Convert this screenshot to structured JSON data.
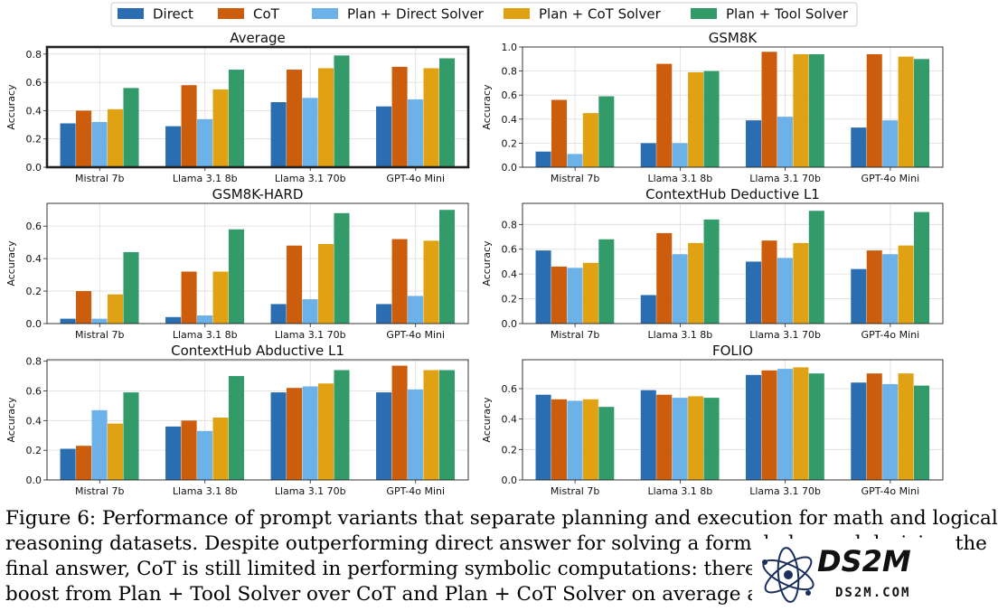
{
  "legend": [
    {
      "name": "Direct",
      "color": "#2a6db0"
    },
    {
      "name": "CoT",
      "color": "#cc5d0c"
    },
    {
      "name": "Plan + Direct Solver",
      "color": "#6cb1e8"
    },
    {
      "name": "Plan + CoT Solver",
      "color": "#e0a213"
    },
    {
      "name": "Plan + Tool Solver",
      "color": "#339b6a"
    }
  ],
  "chart_data": [
    {
      "type": "bar",
      "title": "Average",
      "ylabel": "Accuracy",
      "ylim": [
        0,
        0.85
      ],
      "yticks": [
        "0.0",
        "0.2",
        "0.4",
        "0.6",
        "0.8"
      ],
      "highlighted": true,
      "categories": [
        "Mistral 7b",
        "Llama 3.1 8b",
        "Llama 3.1 70b",
        "GPT-4o Mini"
      ],
      "series": [
        {
          "name": "Direct",
          "values": [
            0.31,
            0.29,
            0.46,
            0.43
          ]
        },
        {
          "name": "CoT",
          "values": [
            0.4,
            0.58,
            0.69,
            0.71
          ]
        },
        {
          "name": "Plan + Direct Solver",
          "values": [
            0.32,
            0.34,
            0.49,
            0.48
          ]
        },
        {
          "name": "Plan + CoT Solver",
          "values": [
            0.41,
            0.55,
            0.7,
            0.7
          ]
        },
        {
          "name": "Plan + Tool Solver",
          "values": [
            0.56,
            0.69,
            0.79,
            0.77
          ]
        }
      ]
    },
    {
      "type": "bar",
      "title": "GSM8K",
      "ylabel": "Accuracy",
      "ylim": [
        0,
        1.0
      ],
      "yticks": [
        "0.0",
        "0.2",
        "0.4",
        "0.6",
        "0.8",
        "1.0"
      ],
      "highlighted": false,
      "categories": [
        "Mistral 7b",
        "Llama 3.1 8b",
        "Llama 3.1 70b",
        "GPT-4o Mini"
      ],
      "series": [
        {
          "name": "Direct",
          "values": [
            0.13,
            0.2,
            0.39,
            0.33
          ]
        },
        {
          "name": "CoT",
          "values": [
            0.56,
            0.86,
            0.96,
            0.94
          ]
        },
        {
          "name": "Plan + Direct Solver",
          "values": [
            0.11,
            0.2,
            0.42,
            0.39
          ]
        },
        {
          "name": "Plan + CoT Solver",
          "values": [
            0.45,
            0.79,
            0.94,
            0.92
          ]
        },
        {
          "name": "Plan + Tool Solver",
          "values": [
            0.59,
            0.8,
            0.94,
            0.9
          ]
        }
      ]
    },
    {
      "type": "bar",
      "title": "GSM8K-HARD",
      "ylabel": "Accuracy",
      "ylim": [
        0,
        0.74
      ],
      "yticks": [
        "0.0",
        "0.2",
        "0.4",
        "0.6"
      ],
      "highlighted": false,
      "categories": [
        "Mistral 7b",
        "Llama 3.1 8b",
        "Llama 3.1 70b",
        "GPT-4o Mini"
      ],
      "series": [
        {
          "name": "Direct",
          "values": [
            0.03,
            0.04,
            0.12,
            0.12
          ]
        },
        {
          "name": "CoT",
          "values": [
            0.2,
            0.32,
            0.48,
            0.52
          ]
        },
        {
          "name": "Plan + Direct Solver",
          "values": [
            0.03,
            0.05,
            0.15,
            0.17
          ]
        },
        {
          "name": "Plan + CoT Solver",
          "values": [
            0.18,
            0.32,
            0.49,
            0.51
          ]
        },
        {
          "name": "Plan + Tool Solver",
          "values": [
            0.44,
            0.58,
            0.68,
            0.7
          ]
        }
      ]
    },
    {
      "type": "bar",
      "title": "ContextHub Deductive L1",
      "ylabel": "Accuracy",
      "ylim": [
        0,
        0.97
      ],
      "yticks": [
        "0.0",
        "0.2",
        "0.4",
        "0.6",
        "0.8"
      ],
      "highlighted": false,
      "categories": [
        "Mistral 7b",
        "Llama 3.1 8b",
        "Llama 3.1 70b",
        "GPT-4o Mini"
      ],
      "series": [
        {
          "name": "Direct",
          "values": [
            0.59,
            0.23,
            0.5,
            0.44
          ]
        },
        {
          "name": "CoT",
          "values": [
            0.46,
            0.73,
            0.67,
            0.59
          ]
        },
        {
          "name": "Plan + Direct Solver",
          "values": [
            0.45,
            0.56,
            0.53,
            0.56
          ]
        },
        {
          "name": "Plan + CoT Solver",
          "values": [
            0.49,
            0.65,
            0.65,
            0.63
          ]
        },
        {
          "name": "Plan + Tool Solver",
          "values": [
            0.68,
            0.84,
            0.91,
            0.9
          ]
        }
      ]
    },
    {
      "type": "bar",
      "title": "ContextHub Abductive L1",
      "ylabel": "Accuracy",
      "ylim": [
        0,
        0.81
      ],
      "yticks": [
        "0.0",
        "0.2",
        "0.4",
        "0.6",
        "0.8"
      ],
      "highlighted": false,
      "categories": [
        "Mistral 7b",
        "Llama 3.1 8b",
        "Llama 3.1 70b",
        "GPT-4o Mini"
      ],
      "series": [
        {
          "name": "Direct",
          "values": [
            0.21,
            0.36,
            0.59,
            0.59
          ]
        },
        {
          "name": "CoT",
          "values": [
            0.23,
            0.4,
            0.62,
            0.77
          ]
        },
        {
          "name": "Plan + Direct Solver",
          "values": [
            0.47,
            0.33,
            0.63,
            0.61
          ]
        },
        {
          "name": "Plan + CoT Solver",
          "values": [
            0.38,
            0.42,
            0.65,
            0.74
          ]
        },
        {
          "name": "Plan + Tool Solver",
          "values": [
            0.59,
            0.7,
            0.74,
            0.74
          ]
        }
      ]
    },
    {
      "type": "bar",
      "title": "FOLIO",
      "ylabel": "Accuracy",
      "ylim": [
        0,
        0.79
      ],
      "yticks": [
        "0.0",
        "0.2",
        "0.4",
        "0.6"
      ],
      "highlighted": false,
      "categories": [
        "Mistral 7b",
        "Llama 3.1 8b",
        "Llama 3.1 70b",
        "GPT-4o Mini"
      ],
      "series": [
        {
          "name": "Direct",
          "values": [
            0.56,
            0.59,
            0.69,
            0.64
          ]
        },
        {
          "name": "CoT",
          "values": [
            0.53,
            0.56,
            0.72,
            0.7
          ]
        },
        {
          "name": "Plan + Direct Solver",
          "values": [
            0.52,
            0.54,
            0.73,
            0.63
          ]
        },
        {
          "name": "Plan + CoT Solver",
          "values": [
            0.53,
            0.55,
            0.74,
            0.7
          ]
        },
        {
          "name": "Plan + Tool Solver",
          "values": [
            0.48,
            0.54,
            0.7,
            0.62
          ]
        }
      ]
    }
  ],
  "caption": {
    "line1": "Figure 6: Performance of prompt variants that separate planning and execution for math and logical",
    "line2": "reasoning datasets. Despite outperforming direct answer for solving a formal plan and deriving the",
    "line3": "final answer, CoT is still limited in performing symbolic computations: there i",
    "line4": "boost from Plan + Tool Solver over CoT and Plan + CoT Solver on average ac"
  },
  "watermark": {
    "brand": "DS2M",
    "domain": "DS2M.COM"
  }
}
